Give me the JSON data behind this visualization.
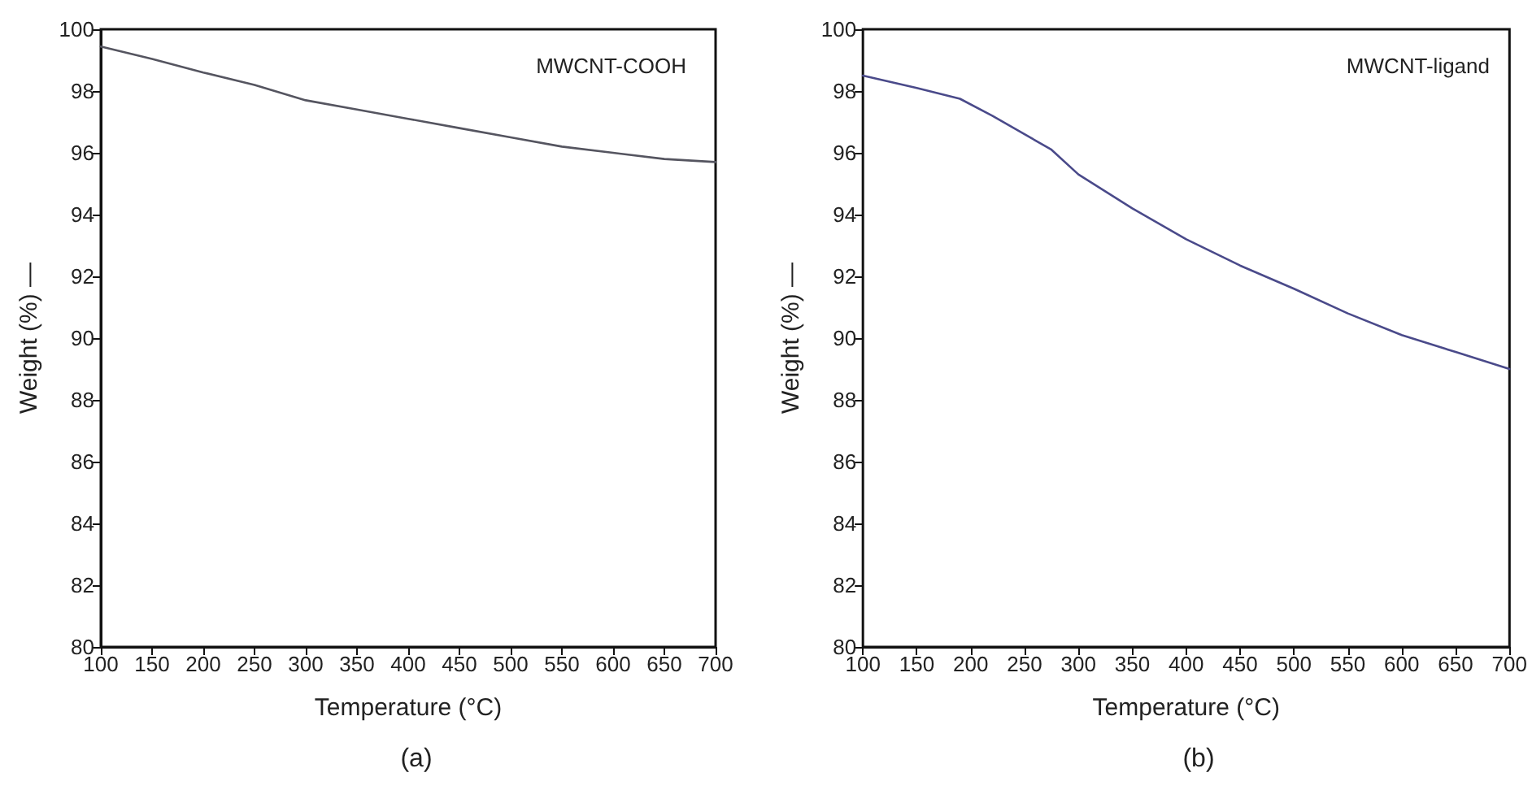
{
  "chart_data": [
    {
      "type": "line",
      "title": "(a)",
      "xlabel": "Temperature (°C)",
      "ylabel": "Weight (%) —",
      "annotations": [
        "MWCNT-COOH"
      ],
      "x": [
        100,
        150,
        200,
        250,
        300,
        350,
        400,
        450,
        500,
        550,
        600,
        650,
        700
      ],
      "series": [
        {
          "color": "#555560",
          "values": [
            99.44,
            99.04,
            98.6,
            98.2,
            97.7,
            97.4,
            97.1,
            96.8,
            96.5,
            96.2,
            96.0,
            95.8,
            95.7
          ]
        }
      ],
      "xlim": [
        100,
        700
      ],
      "xticks": [
        100,
        150,
        200,
        250,
        300,
        350,
        400,
        450,
        500,
        550,
        600,
        650,
        700
      ],
      "ylim": [
        80,
        100
      ],
      "yticks": [
        80,
        82,
        84,
        86,
        88,
        90,
        92,
        94,
        96,
        98,
        100
      ],
      "grid": false,
      "marker": "none",
      "line_style": "solid"
    },
    {
      "type": "line",
      "title": "(b)",
      "xlabel": "Temperature (°C)",
      "ylabel": "Weight (%) —",
      "annotations": [
        "MWCNT-ligand"
      ],
      "x": [
        100,
        150,
        190,
        220,
        250,
        275,
        300,
        350,
        400,
        450,
        500,
        550,
        600,
        650,
        700
      ],
      "series": [
        {
          "color": "#4a4a8a",
          "values": [
            98.5,
            98.1,
            97.75,
            97.2,
            96.6,
            96.1,
            95.3,
            94.2,
            93.2,
            92.35,
            91.6,
            90.8,
            90.1,
            89.55,
            89.0
          ]
        }
      ],
      "xlim": [
        100,
        700
      ],
      "xticks": [
        100,
        150,
        200,
        250,
        300,
        350,
        400,
        450,
        500,
        550,
        600,
        650,
        700
      ],
      "ylim": [
        80,
        100
      ],
      "yticks": [
        80,
        82,
        84,
        86,
        88,
        90,
        92,
        94,
        96,
        98,
        100
      ],
      "grid": false,
      "marker": "none",
      "line_style": "solid"
    }
  ]
}
